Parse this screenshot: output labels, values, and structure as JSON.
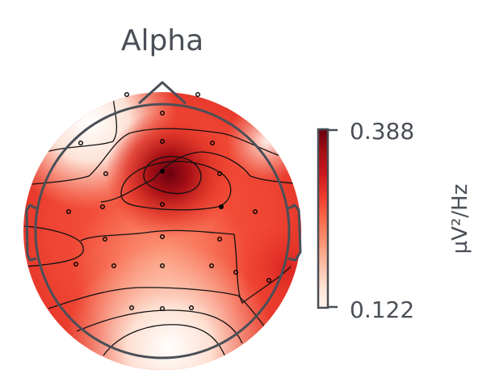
{
  "title": "Alpha",
  "colorbar": {
    "max_label": "0.388",
    "min_label": "0.122",
    "unit_label": "µV²/Hz",
    "min_color": "#fff5f0",
    "mid_color": "#fb6a4a",
    "max_color": "#67000d"
  },
  "colors": {
    "head_outline": "#4a4f57",
    "contour": "#111111",
    "sensor": "#000000"
  }
}
